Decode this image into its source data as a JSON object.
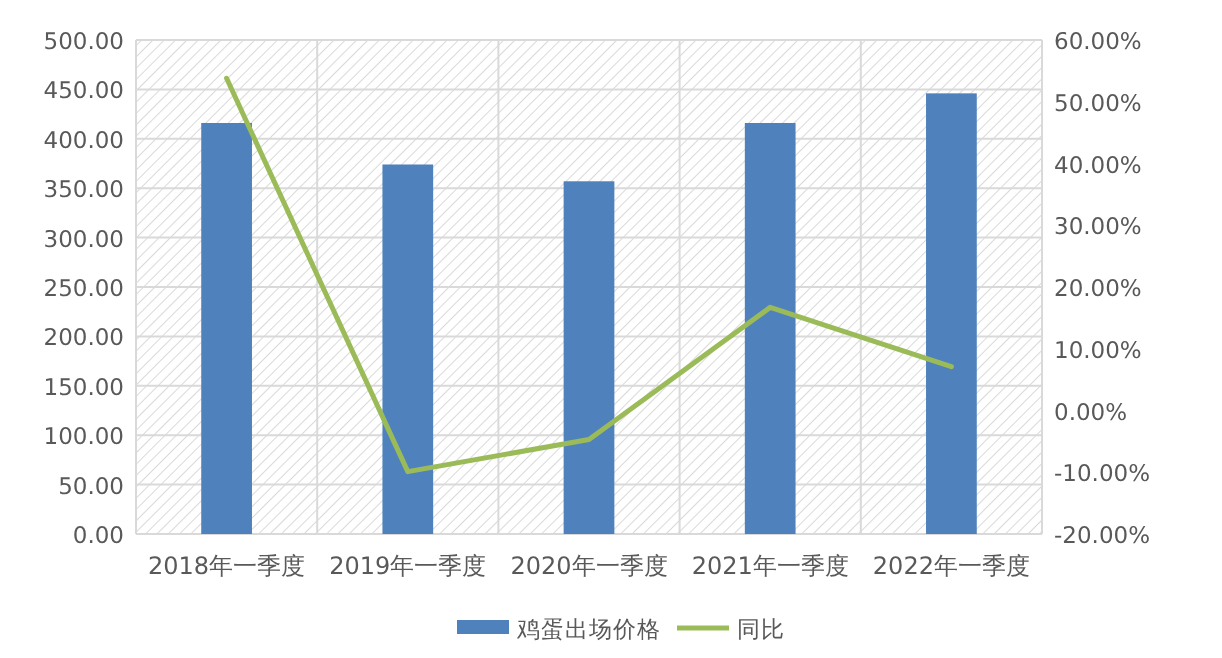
{
  "chart_data": {
    "type": "bar",
    "categories": [
      "2018年一季度",
      "2019年一季度",
      "2020年一季度",
      "2021年一季度",
      "2022年一季度"
    ],
    "series": [
      {
        "name": "鸡蛋出场价格",
        "color": "#4f81bd",
        "values": [
          416,
          374,
          357,
          416,
          446
        ]
      },
      {
        "name": "同比",
        "type": "line",
        "axis": "y2",
        "color": "#9bbb59",
        "values": [
          53.8,
          -9.9,
          -4.7,
          16.7,
          7.1
        ]
      }
    ],
    "ylim": [
      0,
      500
    ],
    "yticks": [
      {
        "value": 0,
        "label": "0.00"
      },
      {
        "value": 50,
        "label": "50.00"
      },
      {
        "value": 100,
        "label": "100.00"
      },
      {
        "value": 150,
        "label": "150.00"
      },
      {
        "value": 200,
        "label": "200.00"
      },
      {
        "value": 250,
        "label": "250.00"
      },
      {
        "value": 300,
        "label": "300.00"
      },
      {
        "value": 350,
        "label": "350.00"
      },
      {
        "value": 400,
        "label": "400.00"
      },
      {
        "value": 450,
        "label": "450.00"
      },
      {
        "value": 500,
        "label": "500.00"
      }
    ],
    "y2lim": [
      -20,
      60
    ],
    "y2ticks": [
      {
        "value": -20,
        "label": "-20.00%"
      },
      {
        "value": -10,
        "label": "-10.00%"
      },
      {
        "value": 0,
        "label": "0.00%"
      },
      {
        "value": 10,
        "label": "10.00%"
      },
      {
        "value": 20,
        "label": "20.00%"
      },
      {
        "value": 30,
        "label": "30.00%"
      },
      {
        "value": 40,
        "label": "40.00%"
      },
      {
        "value": 50,
        "label": "50.00%"
      },
      {
        "value": 60,
        "label": "60.00%"
      }
    ],
    "grid": true,
    "legend": "bottom",
    "marker": "none",
    "line_style": "solid"
  }
}
